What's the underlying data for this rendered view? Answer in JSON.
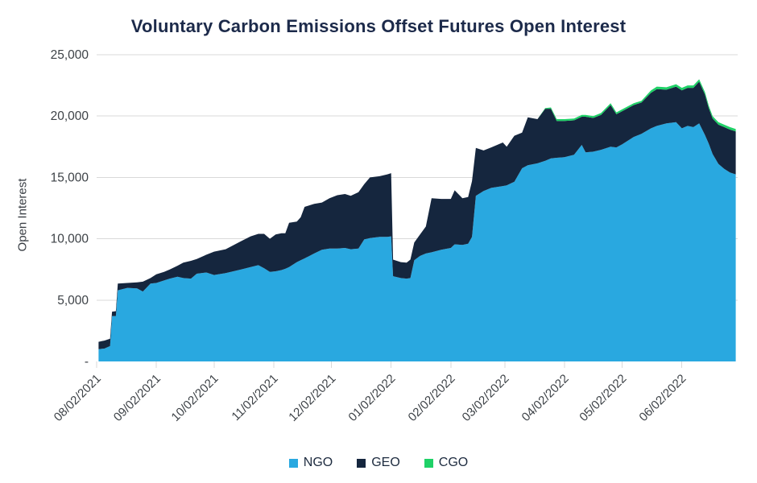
{
  "chart_data": {
    "type": "area",
    "stacked": true,
    "title": "Voluntary Carbon Emissions Offset Futures Open Interest",
    "ylabel": "Open Interest",
    "ylim": [
      0,
      25000
    ],
    "grid": "horizontal",
    "legend_position": "bottom",
    "x_domain": [
      "2021-08-02",
      "2022-07-01"
    ],
    "y_ticks": [
      {
        "value": 0,
        "label": "-"
      },
      {
        "value": 5000,
        "label": "5,000"
      },
      {
        "value": 10000,
        "label": "10,000"
      },
      {
        "value": 15000,
        "label": "15,000"
      },
      {
        "value": 20000,
        "label": "20,000"
      },
      {
        "value": 25000,
        "label": "25,000"
      }
    ],
    "x_ticks": [
      {
        "date": "2021-08-02",
        "label": "08/02/2021"
      },
      {
        "date": "2021-09-02",
        "label": "09/02/2021"
      },
      {
        "date": "2021-10-02",
        "label": "10/02/2021"
      },
      {
        "date": "2021-11-02",
        "label": "11/02/2021"
      },
      {
        "date": "2021-12-02",
        "label": "12/02/2021"
      },
      {
        "date": "2022-01-02",
        "label": "01/02/2022"
      },
      {
        "date": "2022-02-02",
        "label": "02/02/2022"
      },
      {
        "date": "2022-03-02",
        "label": "03/02/2022"
      },
      {
        "date": "2022-04-02",
        "label": "04/02/2022"
      },
      {
        "date": "2022-05-02",
        "label": "05/02/2022"
      },
      {
        "date": "2022-06-02",
        "label": "06/02/2022"
      }
    ],
    "x": [
      "2021-08-03",
      "2021-08-06",
      "2021-08-09",
      "2021-08-10",
      "2021-08-12",
      "2021-08-13",
      "2021-08-18",
      "2021-08-23",
      "2021-08-26",
      "2021-08-30",
      "2021-09-02",
      "2021-09-06",
      "2021-09-09",
      "2021-09-13",
      "2021-09-16",
      "2021-09-20",
      "2021-09-23",
      "2021-09-28",
      "2021-10-02",
      "2021-10-08",
      "2021-10-16",
      "2021-10-21",
      "2021-10-25",
      "2021-10-28",
      "2021-10-31",
      "2021-11-03",
      "2021-11-06",
      "2021-11-08",
      "2021-11-10",
      "2021-11-14",
      "2021-11-16",
      "2021-11-18",
      "2021-11-23",
      "2021-11-27",
      "2021-12-01",
      "2021-12-05",
      "2021-12-09",
      "2021-12-12",
      "2021-12-16",
      "2021-12-19",
      "2021-12-22",
      "2021-12-27",
      "2021-12-31",
      "2022-01-02",
      "2022-01-03",
      "2022-01-07",
      "2022-01-10",
      "2022-01-12",
      "2022-01-14",
      "2022-01-17",
      "2022-01-20",
      "2022-01-23",
      "2022-01-28",
      "2022-02-02",
      "2022-02-04",
      "2022-02-08",
      "2022-02-11",
      "2022-02-13",
      "2022-02-15",
      "2022-02-19",
      "2022-02-23",
      "2022-03-01",
      "2022-03-03",
      "2022-03-07",
      "2022-03-11",
      "2022-03-14",
      "2022-03-19",
      "2022-03-23",
      "2022-03-26",
      "2022-03-29",
      "2022-04-02",
      "2022-04-07",
      "2022-04-11",
      "2022-04-13",
      "2022-04-17",
      "2022-04-21",
      "2022-04-26",
      "2022-04-29",
      "2022-05-02",
      "2022-05-08",
      "2022-05-12",
      "2022-05-17",
      "2022-05-20",
      "2022-05-25",
      "2022-05-30",
      "2022-06-02",
      "2022-06-05",
      "2022-06-08",
      "2022-06-11",
      "2022-06-14",
      "2022-06-16",
      "2022-06-18",
      "2022-06-21",
      "2022-06-24",
      "2022-06-27",
      "2022-06-30"
    ],
    "series": [
      {
        "name": "NGO",
        "color": "#29a8e0",
        "values": [
          1000,
          1050,
          1250,
          3700,
          3700,
          5800,
          6000,
          5950,
          5700,
          6350,
          6400,
          6600,
          6750,
          6900,
          6800,
          6750,
          7150,
          7250,
          7050,
          7200,
          7500,
          7700,
          7850,
          7600,
          7300,
          7350,
          7450,
          7550,
          7700,
          8100,
          8250,
          8400,
          8800,
          9100,
          9200,
          9200,
          9250,
          9150,
          9200,
          9950,
          10050,
          10150,
          10150,
          10200,
          6950,
          6800,
          6750,
          6800,
          8250,
          8600,
          8800,
          8900,
          9100,
          9250,
          9550,
          9500,
          9600,
          10150,
          13500,
          13900,
          14150,
          14300,
          14350,
          14650,
          15750,
          16000,
          16150,
          16350,
          16550,
          16600,
          16650,
          16850,
          17650,
          17050,
          17100,
          17250,
          17500,
          17450,
          17700,
          18300,
          18550,
          19000,
          19200,
          19400,
          19500,
          19000,
          19200,
          19100,
          19400,
          18450,
          17750,
          16900,
          16100,
          15700,
          15400,
          15250
        ]
      },
      {
        "name": "GEO",
        "color": "#15263e",
        "values": [
          600,
          650,
          600,
          350,
          400,
          550,
          400,
          500,
          800,
          450,
          700,
          700,
          750,
          900,
          1250,
          1450,
          1200,
          1450,
          1900,
          1950,
          2300,
          2500,
          2550,
          2800,
          2700,
          3000,
          3000,
          2900,
          3600,
          3300,
          3500,
          4200,
          4050,
          3850,
          4100,
          4350,
          4400,
          4350,
          4600,
          4500,
          4950,
          4950,
          5100,
          5150,
          1350,
          1300,
          1300,
          1500,
          1450,
          1750,
          2200,
          4400,
          4150,
          4000,
          4400,
          3800,
          3800,
          4550,
          3900,
          3300,
          3300,
          3550,
          3150,
          3750,
          2900,
          3900,
          3600,
          4250,
          4050,
          3000,
          2950,
          2800,
          2300,
          2900,
          2750,
          2850,
          3400,
          2700,
          2700,
          2600,
          2550,
          2900,
          3000,
          2750,
          2900,
          3100,
          3100,
          3200,
          3400,
          3300,
          2900,
          2900,
          3200,
          3400,
          3500,
          3500
        ]
      },
      {
        "name": "CGO",
        "color": "#1fd167",
        "values": [
          0,
          0,
          0,
          0,
          0,
          0,
          0,
          0,
          0,
          0,
          0,
          0,
          0,
          0,
          0,
          0,
          0,
          0,
          0,
          0,
          0,
          0,
          0,
          0,
          0,
          0,
          0,
          0,
          0,
          0,
          0,
          0,
          0,
          0,
          0,
          0,
          0,
          0,
          0,
          0,
          0,
          0,
          0,
          0,
          0,
          0,
          0,
          0,
          0,
          0,
          0,
          0,
          0,
          0,
          0,
          0,
          0,
          0,
          0,
          0,
          0,
          0,
          0,
          0,
          0,
          0,
          0,
          50,
          100,
          150,
          150,
          150,
          150,
          150,
          150,
          150,
          150,
          150,
          150,
          150,
          150,
          200,
          200,
          200,
          200,
          200,
          200,
          200,
          200,
          200,
          200,
          200,
          200,
          200,
          200,
          200
        ]
      }
    ]
  }
}
